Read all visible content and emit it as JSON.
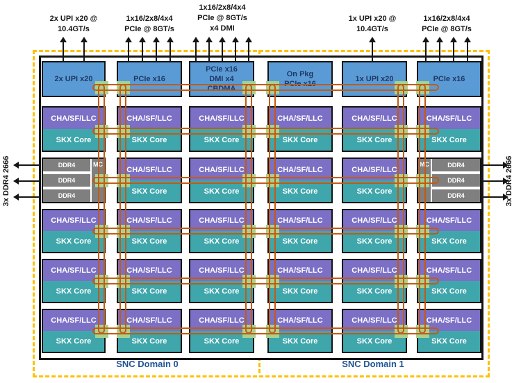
{
  "diagram": {
    "top_io_labels": [
      {
        "lines": [
          "2x UPI x20 @",
          "10.4GT/s"
        ],
        "arrows": 2
      },
      {
        "lines": [
          "1x16/2x8/4x4",
          "PCIe @ 8GT/s"
        ],
        "arrows": 4
      },
      {
        "lines": [
          "1x16/2x8/4x4",
          "PCIe @ 8GT/s",
          "x4 DMI"
        ],
        "arrows": 5
      },
      {
        "lines": [
          "1x UPI x20 @",
          "10.4GT/s"
        ],
        "arrows": 1
      },
      {
        "lines": [
          "1x16/2x8/4x4",
          "PCIe @ 8GT/s"
        ],
        "arrows": 4
      }
    ],
    "io_tiles": [
      {
        "lines": [
          "2x UPI x20"
        ]
      },
      {
        "lines": [
          "PCIe x16"
        ]
      },
      {
        "lines": [
          "PCIe x16",
          "DMI x4",
          "CBDMA"
        ]
      },
      {
        "lines": [
          "On Pkg",
          "PCIe x16"
        ]
      },
      {
        "lines": [
          "1x UPI x20"
        ]
      },
      {
        "lines": [
          "PCIe x16"
        ]
      }
    ],
    "core_tile": {
      "cache_label": "CHA/SF/LLC",
      "core_label": "SKX Core"
    },
    "memory_tile": {
      "controller_label": "MC",
      "channel_labels": [
        "DDR4",
        "DDR4",
        "DDR4"
      ]
    },
    "memory_io": {
      "left": {
        "text": "3x DDR4 2666",
        "arrows": 3
      },
      "right": {
        "text": "3x DDR4 2666",
        "arrows": 3
      }
    },
    "snc_domains": [
      "SNC Domain 0",
      "SNC Domain 1"
    ],
    "colors": {
      "io_tile_blue": "#5B9BD5",
      "cha_purple": "#7B70C5",
      "core_teal": "#3FA6AB",
      "memory_gray": "#7F7F7F",
      "mesh_orange": "#C55A11",
      "mesh_stop_green": "#A9D18E",
      "snc_border_yellow": "#FFC000",
      "io_text_navy": "#1F3864",
      "snc_label_blue": "#1F5597",
      "outline_black": "#141414"
    }
  }
}
